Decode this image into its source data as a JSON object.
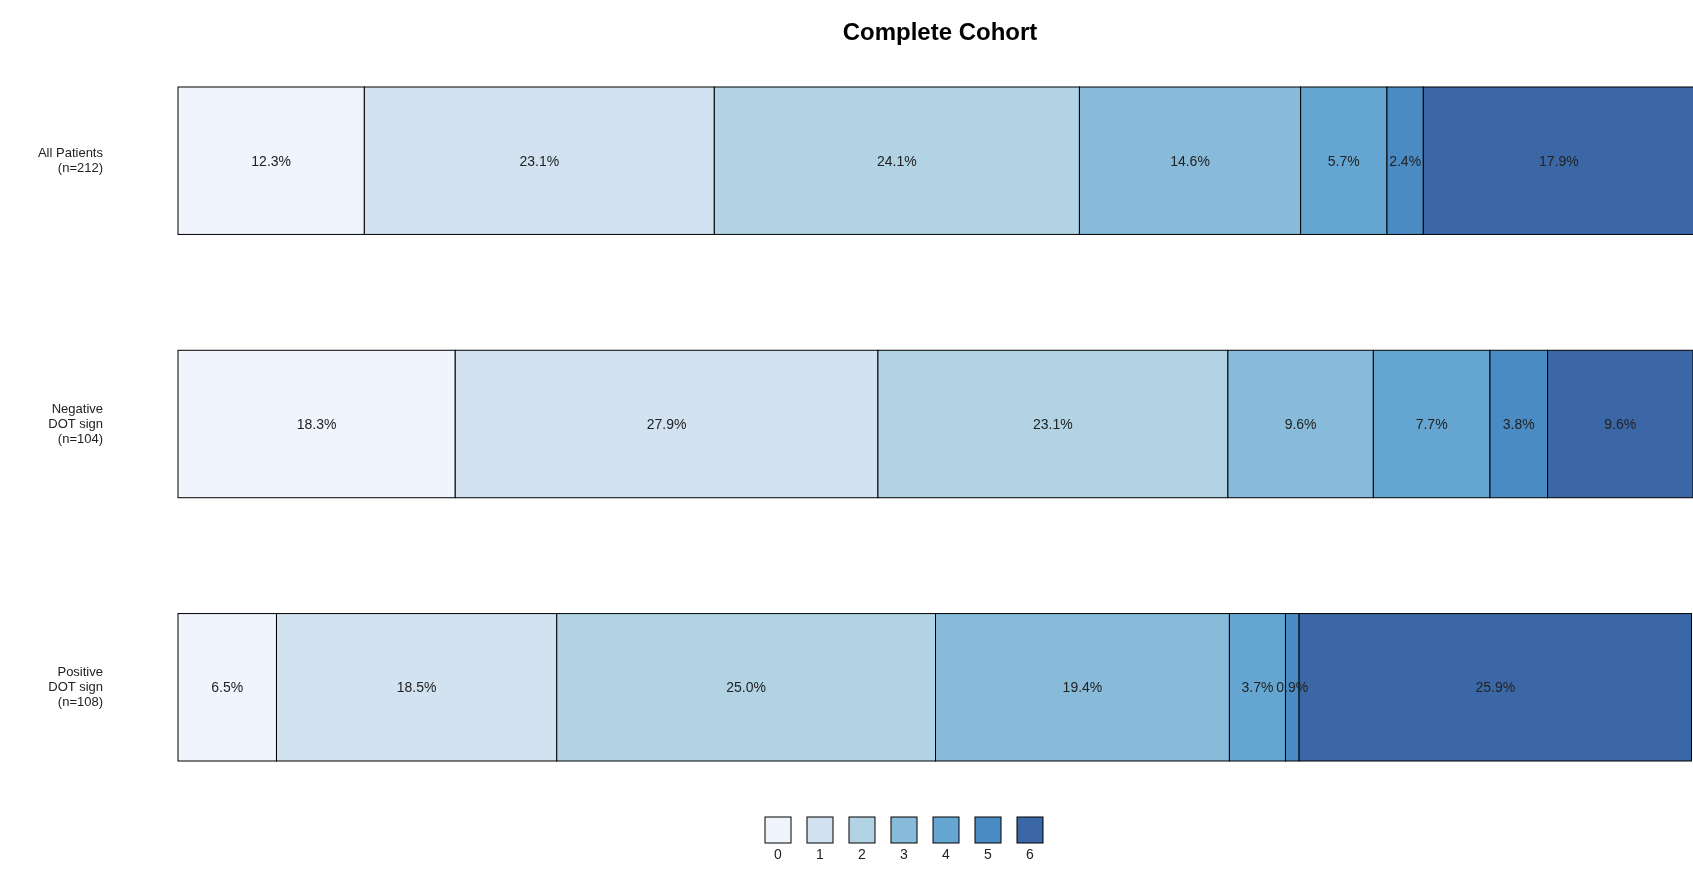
{
  "chart_data": {
    "type": "bar",
    "orientation": "horizontal",
    "stacked": true,
    "title": "Complete Cohort",
    "categories": [
      "All Patients\n(n=212)",
      "Negative\nDOT sign\n(n=104)",
      "Positive\nDOT sign\n(n=108)"
    ],
    "xlim": [
      0,
      100
    ],
    "legend": "bottom",
    "tick_labels": "y",
    "series": [
      {
        "name": "0",
        "color": "#eff4fd",
        "values": [
          12.3,
          18.3,
          6.5
        ],
        "value_labels": [
          "12.3%",
          "18.3%",
          "6.5%"
        ]
      },
      {
        "name": "1",
        "color": "#d3e2f1",
        "values": [
          23.1,
          27.9,
          18.5
        ],
        "value_labels": [
          "23.1%",
          "27.9%",
          "18.5%"
        ]
      },
      {
        "name": "2",
        "color": "#b1d3e4",
        "values": [
          24.1,
          23.1,
          25.0
        ],
        "value_labels": [
          "24.1%",
          "23.1%",
          "25.0%"
        ]
      },
      {
        "name": "3",
        "color": "#88bbda",
        "values": [
          14.6,
          9.6,
          19.4
        ],
        "value_labels": [
          "14.6%",
          "9.6%",
          "19.4%"
        ]
      },
      {
        "name": "4",
        "color": "#64a6d1",
        "values": [
          5.7,
          7.7,
          3.7
        ],
        "value_labels": [
          "5.7%",
          "7.7%",
          "3.7%"
        ]
      },
      {
        "name": "5",
        "color": "#4a8bc4",
        "values": [
          2.4,
          3.8,
          0.9
        ],
        "value_labels": [
          "2.4%",
          "3.8%",
          "0.9%"
        ]
      },
      {
        "name": "6",
        "color": "#3b67a6",
        "values": [
          17.9,
          9.6,
          25.9
        ],
        "value_labels": [
          "17.9%",
          "9.6%",
          "25.9%"
        ]
      }
    ]
  }
}
